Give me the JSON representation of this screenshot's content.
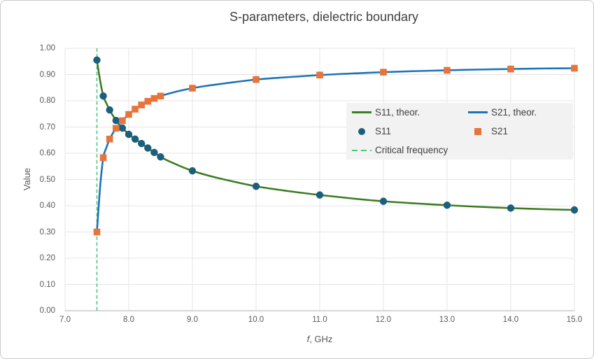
{
  "chart_data": {
    "type": "line",
    "title": "S-parameters, dielectric boundary",
    "xlabel": "f, GHz",
    "xlabel_var": "f",
    "xlabel_unit": ", GHz",
    "ylabel": "Value",
    "xlim": [
      7.0,
      15.0
    ],
    "ylim": [
      0.0,
      1.0
    ],
    "grid": true,
    "x_tick_labels": [
      "7.0",
      "8.0",
      "9.0",
      "10.0",
      "11.0",
      "12.0",
      "13.0",
      "14.0",
      "15.0"
    ],
    "y_tick_labels": [
      "0.00",
      "0.10",
      "0.20",
      "0.30",
      "0.40",
      "0.50",
      "0.60",
      "0.70",
      "0.80",
      "0.90",
      "1.00"
    ],
    "legend_position": "inside-middle-right",
    "critical_frequency_ghz": 7.5,
    "series": [
      {
        "name": "S11, theor.",
        "type": "line",
        "color": "#3C7D23",
        "x": [
          7.5,
          7.55,
          7.6,
          7.65,
          7.7,
          7.75,
          7.8,
          7.85,
          7.9,
          7.95,
          8.0,
          8.1,
          8.2,
          8.3,
          8.4,
          8.5,
          8.75,
          9.0,
          9.25,
          9.5,
          10.0,
          10.5,
          11.0,
          11.5,
          12.0,
          12.5,
          13.0,
          13.5,
          14.0,
          14.5,
          15.0
        ],
        "y": [
          0.955,
          0.878,
          0.818,
          0.79,
          0.765,
          0.744,
          0.725,
          0.71,
          0.696,
          0.684,
          0.672,
          0.654,
          0.637,
          0.62,
          0.603,
          0.586,
          0.557,
          0.533,
          0.515,
          0.5,
          0.474,
          0.456,
          0.441,
          0.428,
          0.417,
          0.409,
          0.402,
          0.396,
          0.391,
          0.387,
          0.384
        ]
      },
      {
        "name": "S21, theor.",
        "type": "line",
        "color": "#1D73B8",
        "x": [
          7.5,
          7.55,
          7.6,
          7.65,
          7.7,
          7.75,
          7.8,
          7.85,
          7.9,
          7.95,
          8.0,
          8.1,
          8.2,
          8.3,
          8.4,
          8.5,
          8.75,
          9.0,
          9.25,
          9.5,
          10.0,
          10.5,
          11.0,
          11.5,
          12.0,
          12.5,
          13.0,
          13.5,
          14.0,
          14.5,
          15.0
        ],
        "y": [
          0.3,
          0.47,
          0.583,
          0.622,
          0.654,
          0.676,
          0.695,
          0.71,
          0.724,
          0.737,
          0.748,
          0.768,
          0.784,
          0.798,
          0.809,
          0.818,
          0.835,
          0.848,
          0.858,
          0.866,
          0.881,
          0.89,
          0.898,
          0.904,
          0.909,
          0.913,
          0.916,
          0.919,
          0.921,
          0.923,
          0.924
        ]
      },
      {
        "name": "S11",
        "type": "scatter",
        "marker": "circle",
        "color": "#1B5E7D",
        "x": [
          7.5,
          7.6,
          7.7,
          7.8,
          7.9,
          8.0,
          8.1,
          8.2,
          8.3,
          8.4,
          8.5,
          9.0,
          10.0,
          11.0,
          12.0,
          13.0,
          14.0,
          15.0
        ],
        "y": [
          0.955,
          0.818,
          0.765,
          0.725,
          0.696,
          0.672,
          0.654,
          0.637,
          0.62,
          0.603,
          0.586,
          0.533,
          0.474,
          0.441,
          0.417,
          0.402,
          0.391,
          0.384
        ]
      },
      {
        "name": "S21",
        "type": "scatter",
        "marker": "square",
        "color": "#E7743B",
        "x": [
          7.5,
          7.6,
          7.7,
          7.8,
          7.9,
          8.0,
          8.1,
          8.2,
          8.3,
          8.4,
          8.5,
          9.0,
          10.0,
          11.0,
          12.0,
          13.0,
          14.0,
          15.0
        ],
        "y": [
          0.3,
          0.583,
          0.654,
          0.695,
          0.724,
          0.748,
          0.768,
          0.784,
          0.798,
          0.809,
          0.818,
          0.848,
          0.881,
          0.898,
          0.909,
          0.916,
          0.921,
          0.924
        ]
      },
      {
        "name": "Critical frequency",
        "type": "vline",
        "color": "#53C581",
        "x": 7.5
      }
    ]
  },
  "style_colors": {
    "gridline": "#e4e4e4",
    "axis_line": "#bdbdbd",
    "tick_text": "#595959",
    "title_text": "#404040",
    "legend_bg": "#f2f2f2"
  }
}
